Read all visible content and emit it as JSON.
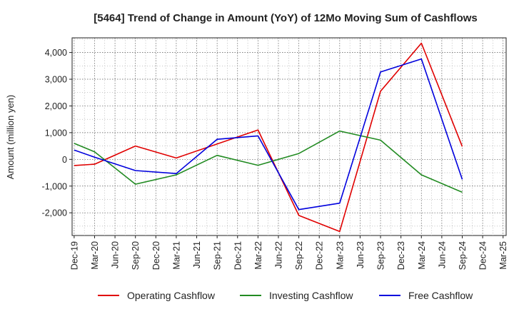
{
  "chart_data": {
    "type": "line",
    "title": "[5464]  Trend of Change in Amount (YoY) of 12Mo Moving Sum of Cashflows",
    "xlabel": "",
    "ylabel": "Amount (million yen)",
    "ylim": [
      -2850,
      4550
    ],
    "yticks": [
      4000,
      3000,
      2000,
      1000,
      0,
      -1000,
      -2000
    ],
    "ytick_labels": [
      "4,000",
      "3,000",
      "2,000",
      "1,000",
      "0",
      "-1,000",
      "-2,000"
    ],
    "grid": true,
    "legend_position": "bottom",
    "categories": [
      "Dec-19",
      "Mar-20",
      "Jun-20",
      "Sep-20",
      "Dec-20",
      "Mar-21",
      "Jun-21",
      "Sep-21",
      "Dec-21",
      "Mar-22",
      "Jun-22",
      "Sep-22",
      "Dec-22",
      "Mar-23",
      "Jun-23",
      "Sep-23",
      "Dec-23",
      "Mar-24",
      "Jun-24",
      "Sep-24",
      "Dec-24",
      "Mar-25"
    ],
    "series": [
      {
        "name": "Operating Cashflow",
        "color": "#e00000",
        "values": [
          -230,
          -180,
          null,
          500,
          null,
          50,
          null,
          null,
          null,
          1100,
          null,
          -2100,
          null,
          -2700,
          null,
          2550,
          null,
          4350,
          null,
          480,
          null,
          null
        ]
      },
      {
        "name": "Investing Cashflow",
        "color": "#228b22",
        "values": [
          600,
          280,
          null,
          -930,
          null,
          -580,
          null,
          150,
          null,
          -220,
          null,
          220,
          null,
          1060,
          null,
          720,
          null,
          -580,
          null,
          -1230,
          null,
          null
        ]
      },
      {
        "name": "Free Cashflow",
        "color": "#0000dd",
        "values": [
          350,
          80,
          null,
          -420,
          null,
          -530,
          null,
          750,
          null,
          880,
          null,
          -1880,
          null,
          -1640,
          null,
          3270,
          null,
          3760,
          null,
          -750,
          null,
          null
        ]
      }
    ]
  }
}
